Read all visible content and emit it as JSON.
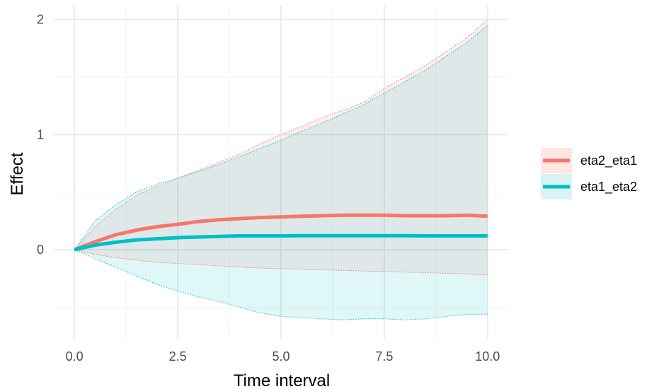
{
  "chart_data": {
    "type": "line",
    "xlabel": "Time interval",
    "ylabel": "Effect",
    "xlim": [
      -0.5,
      10.5
    ],
    "ylim": [
      -0.78,
      2.12
    ],
    "x_ticks": [
      0,
      2.5,
      5,
      7.5,
      10
    ],
    "x_tick_labels": [
      "0.0",
      "2.5",
      "5.0",
      "7.5",
      "10.0"
    ],
    "y_ticks": [
      0,
      1,
      2
    ],
    "y_tick_labels": [
      "0",
      "1",
      "2"
    ],
    "grid": true,
    "legend_position": "right",
    "series": [
      {
        "name": "eta2_eta1",
        "color": "#F8766D",
        "band_color": "#FFE7E4",
        "x": [
          0,
          0.5,
          1,
          1.5,
          2,
          2.5,
          3,
          3.5,
          4,
          4.5,
          5,
          5.5,
          6,
          6.5,
          7,
          7.5,
          8,
          8.5,
          9,
          9.5,
          10
        ],
        "y": [
          0,
          0.07,
          0.13,
          0.17,
          0.2,
          0.22,
          0.245,
          0.26,
          0.27,
          0.28,
          0.285,
          0.29,
          0.295,
          0.3,
          0.3,
          0.3,
          0.295,
          0.295,
          0.295,
          0.3,
          0.29
        ],
        "lower": [
          0,
          -0.04,
          -0.07,
          -0.09,
          -0.11,
          -0.12,
          -0.13,
          -0.14,
          -0.15,
          -0.16,
          -0.165,
          -0.17,
          -0.175,
          -0.18,
          -0.185,
          -0.19,
          -0.195,
          -0.2,
          -0.205,
          -0.21,
          -0.22
        ],
        "upper": [
          0,
          0.2,
          0.35,
          0.47,
          0.55,
          0.62,
          0.69,
          0.76,
          0.83,
          0.92,
          1.0,
          1.07,
          1.15,
          1.21,
          1.28,
          1.4,
          1.5,
          1.6,
          1.72,
          1.84,
          2.0
        ]
      },
      {
        "name": "eta1_eta2",
        "color": "#00BFC4",
        "band_color": "#D8F3F4",
        "x": [
          0,
          0.5,
          1,
          1.5,
          2,
          2.5,
          3,
          3.5,
          4,
          4.5,
          5,
          5.5,
          6,
          6.5,
          7,
          7.5,
          8,
          8.5,
          9,
          9.5,
          10
        ],
        "y": [
          0,
          0.04,
          0.065,
          0.085,
          0.095,
          0.105,
          0.11,
          0.115,
          0.12,
          0.12,
          0.12,
          0.122,
          0.122,
          0.122,
          0.122,
          0.122,
          0.122,
          0.12,
          0.12,
          0.12,
          0.12
        ],
        "lower": [
          0,
          -0.08,
          -0.15,
          -0.23,
          -0.3,
          -0.36,
          -0.41,
          -0.45,
          -0.5,
          -0.55,
          -0.58,
          -0.59,
          -0.6,
          -0.61,
          -0.6,
          -0.6,
          -0.61,
          -0.6,
          -0.58,
          -0.56,
          -0.56
        ],
        "upper": [
          0,
          0.25,
          0.39,
          0.5,
          0.57,
          0.62,
          0.68,
          0.74,
          0.81,
          0.88,
          0.95,
          1.03,
          1.1,
          1.18,
          1.26,
          1.36,
          1.46,
          1.56,
          1.68,
          1.8,
          1.95
        ]
      }
    ]
  }
}
